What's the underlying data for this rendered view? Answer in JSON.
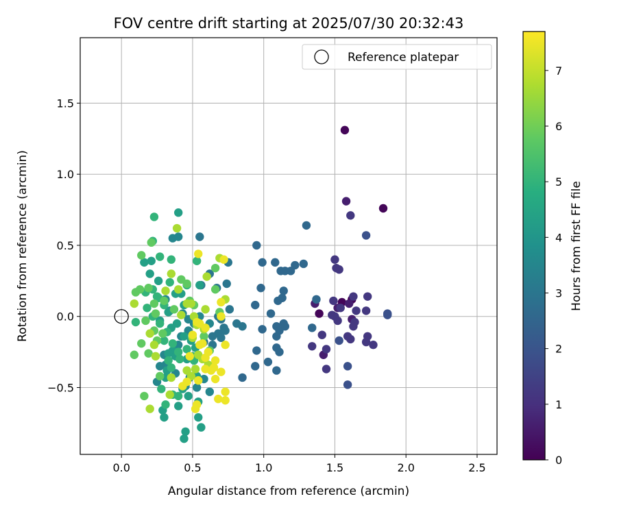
{
  "chart_data": {
    "type": "scatter",
    "title": "FOV centre drift starting at 2025/07/30 20:32:43",
    "xlabel": "Angular distance from reference (arcmin)",
    "ylabel": "Rotation from reference (arcmin)",
    "xlim": [
      -0.29,
      2.64
    ],
    "ylim": [
      -0.97,
      1.96
    ],
    "xticks": [
      {
        "value": 0.0,
        "label": "0.0"
      },
      {
        "value": 0.5,
        "label": "0.5"
      },
      {
        "value": 1.0,
        "label": "1.0"
      },
      {
        "value": 1.5,
        "label": "1.5"
      },
      {
        "value": 2.0,
        "label": "2.0"
      },
      {
        "value": 2.5,
        "label": "2.5"
      }
    ],
    "yticks": [
      {
        "value": -0.5,
        "label": "−0.5"
      },
      {
        "value": 0.0,
        "label": "0.0"
      },
      {
        "value": 0.5,
        "label": "0.5"
      },
      {
        "value": 1.0,
        "label": "1.0"
      },
      {
        "value": 1.5,
        "label": "1.5"
      }
    ],
    "grid": true,
    "legend": {
      "placement": "top-right",
      "entries": [
        {
          "label": "Reference platepar",
          "marker": "open-circle"
        }
      ]
    },
    "reference_point": {
      "x": 0.0,
      "y": 0.0
    },
    "colorbar": {
      "label": "Hours from first FF file",
      "colormap": "viridis",
      "range": [
        0,
        7.7
      ],
      "ticks": [
        {
          "value": 0,
          "label": "0"
        },
        {
          "value": 1,
          "label": "1"
        },
        {
          "value": 2,
          "label": "2"
        },
        {
          "value": 3,
          "label": "3"
        },
        {
          "value": 4,
          "label": "4"
        },
        {
          "value": 5,
          "label": "5"
        },
        {
          "value": 6,
          "label": "6"
        },
        {
          "value": 7,
          "label": "7"
        }
      ]
    },
    "series": [
      {
        "color_value_hours": 0.1,
        "points": [
          [
            1.57,
            1.31
          ],
          [
            1.84,
            0.76
          ],
          [
            1.39,
            0.02
          ],
          [
            1.55,
            0.1
          ],
          [
            1.62,
            0.12
          ]
        ]
      },
      {
        "color_value_hours": 0.6,
        "points": [
          [
            1.58,
            0.81
          ],
          [
            1.36,
            0.09
          ],
          [
            1.52,
            0.06
          ],
          [
            1.6,
            0.09
          ],
          [
            1.42,
            -0.27
          ],
          [
            1.62,
            -0.02
          ]
        ]
      },
      {
        "color_value_hours": 1.2,
        "points": [
          [
            1.61,
            0.71
          ],
          [
            1.5,
            0.4
          ],
          [
            1.51,
            0.34
          ],
          [
            1.53,
            0.33
          ],
          [
            1.49,
            0.11
          ],
          [
            1.54,
            0.06
          ],
          [
            1.63,
            0.14
          ],
          [
            1.73,
            0.14
          ],
          [
            1.65,
            0.04
          ],
          [
            1.72,
            0.04
          ],
          [
            1.48,
            0.01
          ],
          [
            1.5,
            0.0
          ],
          [
            1.52,
            -0.03
          ],
          [
            1.59,
            -0.14
          ],
          [
            1.64,
            -0.04
          ],
          [
            1.63,
            -0.07
          ],
          [
            1.72,
            -0.18
          ],
          [
            1.77,
            -0.2
          ],
          [
            1.61,
            -0.16
          ],
          [
            1.73,
            -0.14
          ],
          [
            1.41,
            -0.13
          ],
          [
            1.44,
            -0.23
          ],
          [
            1.44,
            -0.37
          ],
          [
            1.34,
            -0.21
          ]
        ]
      },
      {
        "color_value_hours": 1.9,
        "points": [
          [
            1.72,
            0.57
          ],
          [
            1.87,
            0.01
          ],
          [
            1.87,
            0.02
          ],
          [
            1.59,
            -0.35
          ],
          [
            1.59,
            -0.48
          ],
          [
            1.53,
            -0.17
          ]
        ]
      },
      {
        "color_value_hours": 2.6,
        "points": [
          [
            1.3,
            0.64
          ],
          [
            0.95,
            0.5
          ],
          [
            1.08,
            0.38
          ],
          [
            0.99,
            0.38
          ],
          [
            1.22,
            0.36
          ],
          [
            1.28,
            0.37
          ],
          [
            1.12,
            0.32
          ],
          [
            1.15,
            0.32
          ],
          [
            1.19,
            0.32
          ],
          [
            1.14,
            0.18
          ],
          [
            1.13,
            0.13
          ],
          [
            1.1,
            0.11
          ],
          [
            0.98,
            0.2
          ],
          [
            0.94,
            0.08
          ],
          [
            1.05,
            0.02
          ],
          [
            1.09,
            -0.07
          ],
          [
            1.14,
            -0.05
          ],
          [
            1.15,
            -0.07
          ],
          [
            0.99,
            -0.09
          ],
          [
            1.11,
            -0.1
          ],
          [
            1.09,
            -0.14
          ],
          [
            0.95,
            -0.24
          ],
          [
            1.09,
            -0.22
          ],
          [
            1.11,
            -0.25
          ],
          [
            1.03,
            -0.32
          ],
          [
            0.94,
            -0.35
          ],
          [
            1.09,
            -0.38
          ],
          [
            1.34,
            -0.08
          ],
          [
            1.37,
            0.12
          ],
          [
            0.85,
            -0.43
          ]
        ]
      },
      {
        "color_value_hours": 3.0,
        "points": [
          [
            0.55,
            0.56
          ],
          [
            0.62,
            0.3
          ],
          [
            0.67,
            0.2
          ],
          [
            0.74,
            0.23
          ],
          [
            0.76,
            0.05
          ],
          [
            0.68,
            0.0
          ],
          [
            0.7,
            -0.02
          ],
          [
            0.72,
            -0.08
          ],
          [
            0.81,
            -0.05
          ],
          [
            0.85,
            -0.07
          ],
          [
            0.73,
            -0.1
          ],
          [
            0.68,
            -0.12
          ],
          [
            0.64,
            -0.14
          ],
          [
            0.7,
            -0.15
          ],
          [
            0.58,
            -0.18
          ],
          [
            0.64,
            -0.2
          ],
          [
            0.75,
            0.38
          ],
          [
            0.56,
            0.22
          ]
        ]
      },
      {
        "color_value_hours": 3.5,
        "points": [
          [
            0.36,
            0.55
          ],
          [
            0.4,
            0.56
          ],
          [
            0.31,
            0.12
          ],
          [
            0.34,
            0.04
          ],
          [
            0.43,
            0.02
          ],
          [
            0.47,
            -0.02
          ],
          [
            0.51,
            -0.05
          ],
          [
            0.47,
            -0.1
          ],
          [
            0.42,
            -0.14
          ],
          [
            0.4,
            -0.2
          ],
          [
            0.3,
            -0.27
          ],
          [
            0.31,
            -0.34
          ],
          [
            0.27,
            -0.35
          ],
          [
            0.38,
            -0.4
          ],
          [
            0.48,
            -0.43
          ],
          [
            0.58,
            -0.44
          ],
          [
            0.53,
            -0.5
          ],
          [
            0.62,
            -0.53
          ],
          [
            0.45,
            -0.49
          ],
          [
            0.25,
            -0.46
          ],
          [
            0.55,
            0.0
          ],
          [
            0.62,
            -0.05
          ]
        ]
      },
      {
        "color_value_hours": 4.3,
        "points": [
          [
            0.4,
            0.73
          ],
          [
            0.21,
            0.39
          ],
          [
            0.16,
            0.38
          ],
          [
            0.2,
            0.3
          ],
          [
            0.26,
            0.25
          ],
          [
            0.38,
            0.16
          ],
          [
            0.42,
            0.16
          ],
          [
            0.44,
            0.08
          ],
          [
            0.33,
            0.03
          ],
          [
            0.27,
            -0.03
          ],
          [
            0.39,
            -0.05
          ],
          [
            0.35,
            -0.08
          ],
          [
            0.44,
            -0.14
          ],
          [
            0.49,
            -0.17
          ],
          [
            0.52,
            -0.22
          ],
          [
            0.36,
            -0.24
          ],
          [
            0.33,
            -0.26
          ],
          [
            0.32,
            -0.38
          ],
          [
            0.31,
            -0.43
          ],
          [
            0.43,
            -0.51
          ],
          [
            0.47,
            -0.56
          ],
          [
            0.29,
            -0.66
          ],
          [
            0.3,
            -0.71
          ],
          [
            0.4,
            -0.63
          ],
          [
            0.54,
            -0.6
          ],
          [
            0.54,
            -0.71
          ],
          [
            0.56,
            -0.78
          ],
          [
            0.45,
            -0.81
          ],
          [
            0.44,
            -0.86
          ],
          [
            0.53,
            -0.42
          ],
          [
            0.38,
            -0.28
          ],
          [
            0.46,
            -0.3
          ],
          [
            0.55,
            0.22
          ]
        ]
      },
      {
        "color_value_hours": 5.0,
        "points": [
          [
            0.23,
            0.7
          ],
          [
            0.22,
            0.53
          ],
          [
            0.27,
            0.42
          ],
          [
            0.35,
            0.4
          ],
          [
            0.34,
            0.24
          ],
          [
            0.22,
            0.19
          ],
          [
            0.17,
            0.17
          ],
          [
            0.26,
            0.13
          ],
          [
            0.3,
            0.08
          ],
          [
            0.18,
            0.06
          ],
          [
            0.22,
            0.0
          ],
          [
            0.27,
            -0.05
          ],
          [
            0.32,
            -0.11
          ],
          [
            0.3,
            -0.17
          ],
          [
            0.36,
            -0.19
          ],
          [
            0.4,
            -0.25
          ],
          [
            0.41,
            -0.3
          ],
          [
            0.33,
            -0.31
          ],
          [
            0.35,
            -0.36
          ],
          [
            0.28,
            -0.51
          ],
          [
            0.36,
            -0.55
          ],
          [
            0.4,
            -0.56
          ],
          [
            0.31,
            -0.62
          ],
          [
            0.5,
            -0.28
          ],
          [
            0.46,
            -0.23
          ],
          [
            0.51,
            -0.31
          ],
          [
            0.53,
            0.39
          ],
          [
            0.46,
            0.22
          ],
          [
            0.25,
            0.14
          ],
          [
            0.1,
            -0.04
          ]
        ]
      },
      {
        "color_value_hours": 5.8,
        "points": [
          [
            0.14,
            0.43
          ],
          [
            0.21,
            0.52
          ],
          [
            0.13,
            0.19
          ],
          [
            0.1,
            0.17
          ],
          [
            0.19,
            0.2
          ],
          [
            0.23,
            0.09
          ],
          [
            0.3,
            0.11
          ],
          [
            0.24,
            0.02
          ],
          [
            0.17,
            -0.03
          ],
          [
            0.23,
            -0.1
          ],
          [
            0.29,
            -0.12
          ],
          [
            0.25,
            -0.17
          ],
          [
            0.14,
            -0.19
          ],
          [
            0.19,
            -0.26
          ],
          [
            0.09,
            -0.27
          ],
          [
            0.16,
            -0.56
          ],
          [
            0.27,
            -0.42
          ],
          [
            0.37,
            0.05
          ],
          [
            0.42,
            0.26
          ],
          [
            0.46,
            0.23
          ],
          [
            0.66,
            0.34
          ],
          [
            0.66,
            0.19
          ],
          [
            0.69,
            0.03
          ],
          [
            0.51,
            0.08
          ],
          [
            0.48,
            0.11
          ],
          [
            0.58,
            -0.14
          ],
          [
            0.62,
            -0.24
          ]
        ]
      },
      {
        "color_value_hours": 6.7,
        "points": [
          [
            0.39,
            0.62
          ],
          [
            0.31,
            0.18
          ],
          [
            0.35,
            0.3
          ],
          [
            0.4,
            0.19
          ],
          [
            0.46,
            0.09
          ],
          [
            0.49,
            0.09
          ],
          [
            0.42,
            0.01
          ],
          [
            0.51,
            0.0
          ],
          [
            0.53,
            -0.06
          ],
          [
            0.58,
            -0.09
          ],
          [
            0.5,
            -0.15
          ],
          [
            0.54,
            -0.27
          ],
          [
            0.57,
            -0.3
          ],
          [
            0.61,
            -0.34
          ],
          [
            0.52,
            -0.37
          ],
          [
            0.49,
            -0.42
          ],
          [
            0.46,
            -0.38
          ],
          [
            0.35,
            -0.43
          ],
          [
            0.34,
            -0.55
          ],
          [
            0.2,
            -0.65
          ],
          [
            0.24,
            -0.28
          ],
          [
            0.2,
            -0.12
          ],
          [
            0.23,
            -0.2
          ],
          [
            0.6,
            0.28
          ],
          [
            0.59,
            0.05
          ],
          [
            0.69,
            0.41
          ],
          [
            0.73,
            0.12
          ],
          [
            0.09,
            0.09
          ]
        ]
      },
      {
        "color_value_hours": 7.5,
        "points": [
          [
            0.54,
            0.44
          ],
          [
            0.72,
            0.4
          ],
          [
            0.7,
            0.1
          ],
          [
            0.53,
            -0.04
          ],
          [
            0.55,
            -0.05
          ],
          [
            0.59,
            -0.08
          ],
          [
            0.5,
            -0.13
          ],
          [
            0.55,
            -0.2
          ],
          [
            0.61,
            -0.25
          ],
          [
            0.59,
            -0.29
          ],
          [
            0.66,
            -0.31
          ],
          [
            0.65,
            -0.36
          ],
          [
            0.63,
            -0.38
          ],
          [
            0.7,
            -0.39
          ],
          [
            0.59,
            -0.37
          ],
          [
            0.66,
            -0.44
          ],
          [
            0.54,
            -0.45
          ],
          [
            0.46,
            -0.46
          ],
          [
            0.43,
            -0.49
          ],
          [
            0.73,
            -0.53
          ],
          [
            0.73,
            -0.59
          ],
          [
            0.68,
            -0.58
          ],
          [
            0.53,
            -0.62
          ],
          [
            0.52,
            -0.65
          ],
          [
            0.73,
            -0.2
          ],
          [
            0.7,
            0.0
          ],
          [
            0.57,
            -0.19
          ],
          [
            0.48,
            -0.28
          ]
        ]
      }
    ]
  }
}
